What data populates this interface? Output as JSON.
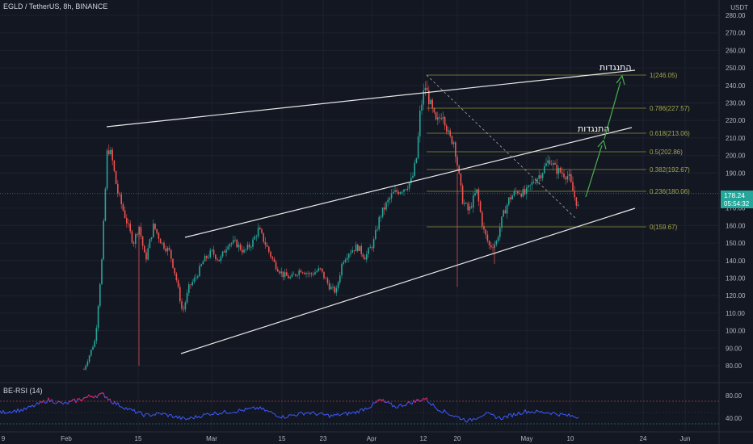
{
  "header": {
    "symbol": "EGLD / TetherUS, 8h, BINANCE"
  },
  "rsi": {
    "label": "BE-RSI (14)"
  },
  "price_axis": {
    "unit": "USDT",
    "ticks": [
      "280.00",
      "270.00",
      "260.00",
      "250.00",
      "240.00",
      "230.00",
      "220.00",
      "210.00",
      "200.00",
      "190.00",
      "170.00",
      "160.00",
      "150.00",
      "140.00",
      "130.00",
      "120.00",
      "110.00",
      "100.00",
      "90.00",
      "80.00"
    ],
    "current_price": "178.24",
    "countdown": "05:54:32"
  },
  "rsi_axis": {
    "ticks": [
      "80.00",
      "40.00"
    ]
  },
  "time_axis": {
    "ticks": [
      "9",
      "Feb",
      "15",
      "Mar",
      "15",
      "23",
      "Apr",
      "12",
      "20",
      "May",
      "10",
      "24",
      "Jun"
    ]
  },
  "fib_levels": [
    {
      "label": "1(246.05)"
    },
    {
      "label": "0.786(227.57)"
    },
    {
      "label": "0.618(213.06)"
    },
    {
      "label": "0.5(202.86)"
    },
    {
      "label": "0.382(192.67)"
    },
    {
      "label": "0.236(180.06)"
    },
    {
      "label": "0(159.67)"
    }
  ],
  "annotations": [
    {
      "text": "התנגדות"
    },
    {
      "text": "התנגדות"
    }
  ],
  "colors": {
    "background": "#131722",
    "up": "#26a69a",
    "down": "#ef5350",
    "rsi_line": "#3d5afe",
    "fib": "#8a8f3a",
    "price_label": "#26a69a"
  }
}
